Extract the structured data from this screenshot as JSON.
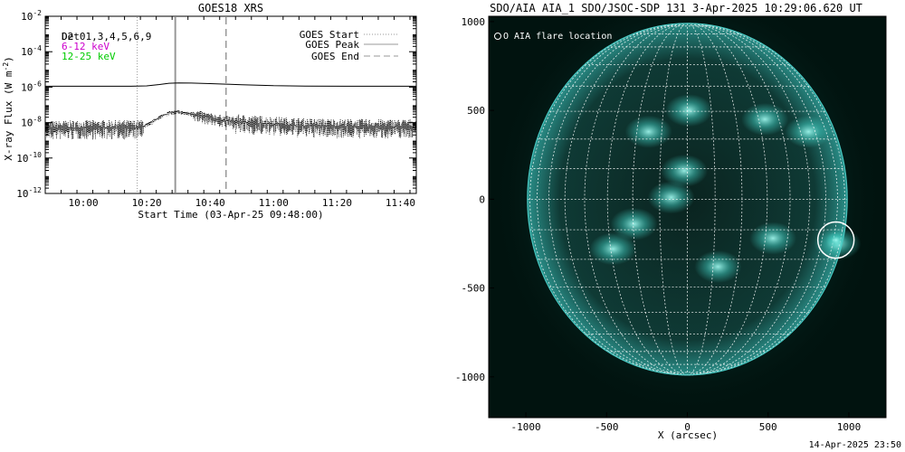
{
  "chart_data": [
    {
      "type": "line",
      "title": "GOES18 XRS",
      "xlabel": "Start Time (03-Apr-25 09:48:00)",
      "ylabel": "X-ray Flux (W m",
      "ylabel_sup": "-2",
      "ylabel_end": ")",
      "y_scale": "log",
      "ylim_exp": [
        -12,
        -2
      ],
      "y_ticks": [
        {
          "exp": -12,
          "base": "10",
          "sup": "-12"
        },
        {
          "exp": -10,
          "base": "10",
          "sup": "-10"
        },
        {
          "exp": -8,
          "base": "10",
          "sup": "-8"
        },
        {
          "exp": -6,
          "base": "10",
          "sup": "-6"
        },
        {
          "exp": -4,
          "base": "10",
          "sup": "-4"
        },
        {
          "exp": -2,
          "base": "10",
          "sup": "-2"
        }
      ],
      "x_range_min": [
        588,
        705
      ],
      "x_ticks": [
        {
          "min": 600,
          "label": "10:00"
        },
        {
          "min": 620,
          "label": "10:20"
        },
        {
          "min": 640,
          "label": "10:40"
        },
        {
          "min": 660,
          "label": "11:00"
        },
        {
          "min": 680,
          "label": "11:20"
        },
        {
          "min": 700,
          "label": "11:40"
        }
      ],
      "legend_left": [
        {
          "label": "Det01,3,4,5,6,9",
          "overlay": "D2",
          "color": "#000000"
        },
        {
          "label": "6-12 keV",
          "color": "#cc00cc"
        },
        {
          "label": "12-25 keV",
          "color": "#00cc00"
        }
      ],
      "legend_right": [
        {
          "label": "GOES Start",
          "style": "dotted",
          "color": "#999999"
        },
        {
          "label": "GOES Peak",
          "style": "solid",
          "color": "#999999"
        },
        {
          "label": "GOES End",
          "style": "dashed",
          "color": "#999999"
        }
      ],
      "event_lines_min": {
        "start": 617,
        "peak": 629,
        "end": 645
      },
      "series": [
        {
          "name": "GOES long channel",
          "style": "solid",
          "points": [
            [
              588,
              -5.95
            ],
            [
              600,
              -5.95
            ],
            [
              615,
              -5.95
            ],
            [
              620,
              -5.93
            ],
            [
              624,
              -5.85
            ],
            [
              627,
              -5.78
            ],
            [
              630,
              -5.76
            ],
            [
              634,
              -5.77
            ],
            [
              640,
              -5.8
            ],
            [
              645,
              -5.83
            ],
            [
              650,
              -5.86
            ],
            [
              655,
              -5.89
            ],
            [
              660,
              -5.92
            ],
            [
              670,
              -5.94
            ],
            [
              690,
              -5.95
            ],
            [
              705,
              -5.95
            ]
          ]
        },
        {
          "name": "GOES short channel",
          "style": "noisy",
          "points": [
            [
              588,
              -8.35
            ],
            [
              600,
              -8.3
            ],
            [
              618,
              -8.3
            ],
            [
              621,
              -8.05
            ],
            [
              624,
              -7.7
            ],
            [
              627,
              -7.45
            ],
            [
              630,
              -7.4
            ],
            [
              635,
              -7.55
            ],
            [
              640,
              -7.75
            ],
            [
              645,
              -7.9
            ],
            [
              650,
              -8.0
            ],
            [
              660,
              -8.1
            ],
            [
              670,
              -8.2
            ],
            [
              690,
              -8.25
            ],
            [
              705,
              -8.25
            ]
          ]
        }
      ]
    },
    {
      "type": "image",
      "title": "SDO/AIA AIA_1 SDO/JSOC-SDP 131  3-Apr-2025 10:29:06.620 UT",
      "xlabel": "X (arcsec)",
      "xlim": [
        -1230,
        1230
      ],
      "ylim": [
        -1230,
        1030
      ],
      "x_ticks": [
        -1000,
        -500,
        0,
        500,
        1000
      ],
      "y_ticks": [
        -1000,
        -500,
        0,
        500,
        1000
      ],
      "solar_radius_arcsec": 990,
      "legend": "O AIA flare location",
      "flare_location_arcsec": [
        920,
        -230
      ],
      "active_regions_arcsec": [
        [
          10,
          500
        ],
        [
          -240,
          380
        ],
        [
          -20,
          160
        ],
        [
          -100,
          10
        ],
        [
          -330,
          -140
        ],
        [
          -460,
          -280
        ],
        [
          480,
          450
        ],
        [
          750,
          380
        ],
        [
          930,
          -250
        ],
        [
          530,
          -220
        ],
        [
          190,
          -380
        ]
      ],
      "colors": {
        "background": "#01130f",
        "disk": "#0c2a26",
        "limb": "#48c7c1",
        "grid": "#ffffff"
      }
    }
  ],
  "footer": {
    "timestamp": "14-Apr-2025 23:50"
  }
}
